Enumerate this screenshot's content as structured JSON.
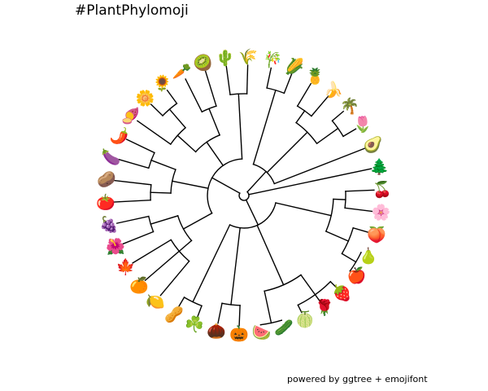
{
  "title": "#PlantPhylomoji",
  "caption": "powered by ggtree + emojifont",
  "tips": [
    "🎋",
    "🌽",
    "🍍",
    "🍌",
    "🌴",
    "🌷",
    "🥑",
    "🌲",
    "🍒",
    "🌸",
    "🍑",
    "🍐",
    "🍎",
    "🍓",
    "🌹",
    "🍈",
    "🥒",
    "🍉",
    "🎃",
    "🌰",
    "☘️",
    "🥜",
    "🍋",
    "🍊",
    "🍁",
    "🌺",
    "🍇",
    "🍅",
    "🥔",
    "🍆",
    "🌶️",
    "🍠",
    "🌼",
    "🌻",
    "🥕",
    "🥝",
    "🌵",
    "🌾"
  ]
}
